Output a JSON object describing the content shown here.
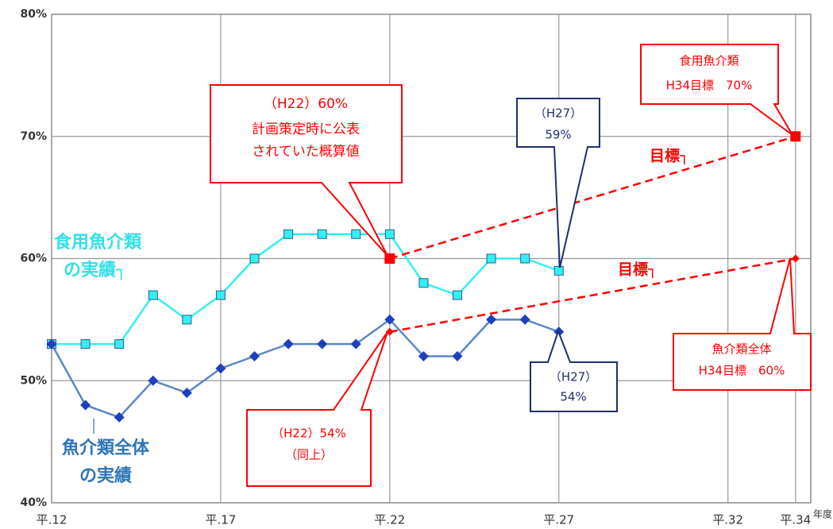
{
  "chart_data": {
    "type": "line",
    "xlim": [
      12,
      34.45
    ],
    "ylim": [
      40,
      80
    ],
    "xticks": [
      {
        "value": 12,
        "label": "平.12"
      },
      {
        "value": 17,
        "label": "平.17"
      },
      {
        "value": 22,
        "label": "平.22"
      },
      {
        "value": 27,
        "label": "平.27"
      },
      {
        "value": 32,
        "label": "平.32"
      },
      {
        "value": 34,
        "label": "平.34"
      }
    ],
    "yticks": [
      {
        "value": 40,
        "label": "40%"
      },
      {
        "value": 50,
        "label": "50%"
      },
      {
        "value": 60,
        "label": "60%"
      },
      {
        "value": 70,
        "label": "70%"
      },
      {
        "value": 80,
        "label": "80%"
      }
    ],
    "xlabel": "年度",
    "grid": true,
    "series": [
      {
        "color": "#33f0f0",
        "marker": "square",
        "dashed": false,
        "x": [
          12,
          13,
          14,
          15,
          16,
          17,
          18,
          19,
          20,
          21,
          22,
          23,
          24,
          25,
          26,
          27
        ],
        "values": [
          53,
          53,
          53,
          57,
          55,
          57,
          60,
          62,
          62,
          62,
          62,
          58,
          57,
          60,
          60,
          59
        ]
      },
      {
        "color": "#5b87c4",
        "marker": "diamond",
        "marker_color": "#1f3fbf",
        "dashed": false,
        "x": [
          12,
          13,
          14,
          15,
          16,
          17,
          18,
          19,
          20,
          21,
          22,
          23,
          24,
          25,
          26,
          27
        ],
        "values": [
          53,
          48,
          47,
          50,
          49,
          51,
          52,
          53,
          53,
          53,
          55,
          52,
          52,
          55,
          55,
          54
        ]
      },
      {
        "color": "#ff0000",
        "marker": "square",
        "dashed": true,
        "x": [
          22,
          34
        ],
        "values": [
          60,
          70
        ]
      },
      {
        "color": "#ff0000",
        "marker": "diamond",
        "dashed": true,
        "x": [
          22,
          34
        ],
        "values": [
          54,
          60
        ]
      }
    ],
    "annotations": [
      {
        "lines": [
          "（H22）60%",
          "計画策定時に公表",
          "されていた概算値"
        ],
        "color": "#ff0000",
        "box": true
      },
      {
        "lines": [
          "（H27）",
          "59%"
        ],
        "color": "#1f2f6f",
        "box": true
      },
      {
        "lines": [
          "食用魚介類",
          "H34目標　70%"
        ],
        "color": "#ff0000",
        "box": true
      },
      {
        "lines": [
          "目標┐"
        ],
        "color": "#ff0000",
        "box": false
      },
      {
        "lines": [
          "目標┐"
        ],
        "color": "#ff0000",
        "box": false
      },
      {
        "lines": [
          "食用魚介類",
          "の実績┐"
        ],
        "color": "#33e0e8",
        "box": false
      },
      {
        "lines": [
          "魚介類全体",
          "の実績"
        ],
        "color": "#2e75b6",
        "box": false
      },
      {
        "lines": [
          "（H22）54%",
          "（同上）"
        ],
        "color": "#ff0000",
        "box": true
      },
      {
        "lines": [
          "（H27）",
          "54%"
        ],
        "color": "#1f2f6f",
        "box": true
      },
      {
        "lines": [
          "魚介類全体",
          "H34目標　60%"
        ],
        "color": "#ff0000",
        "box": true
      }
    ]
  }
}
